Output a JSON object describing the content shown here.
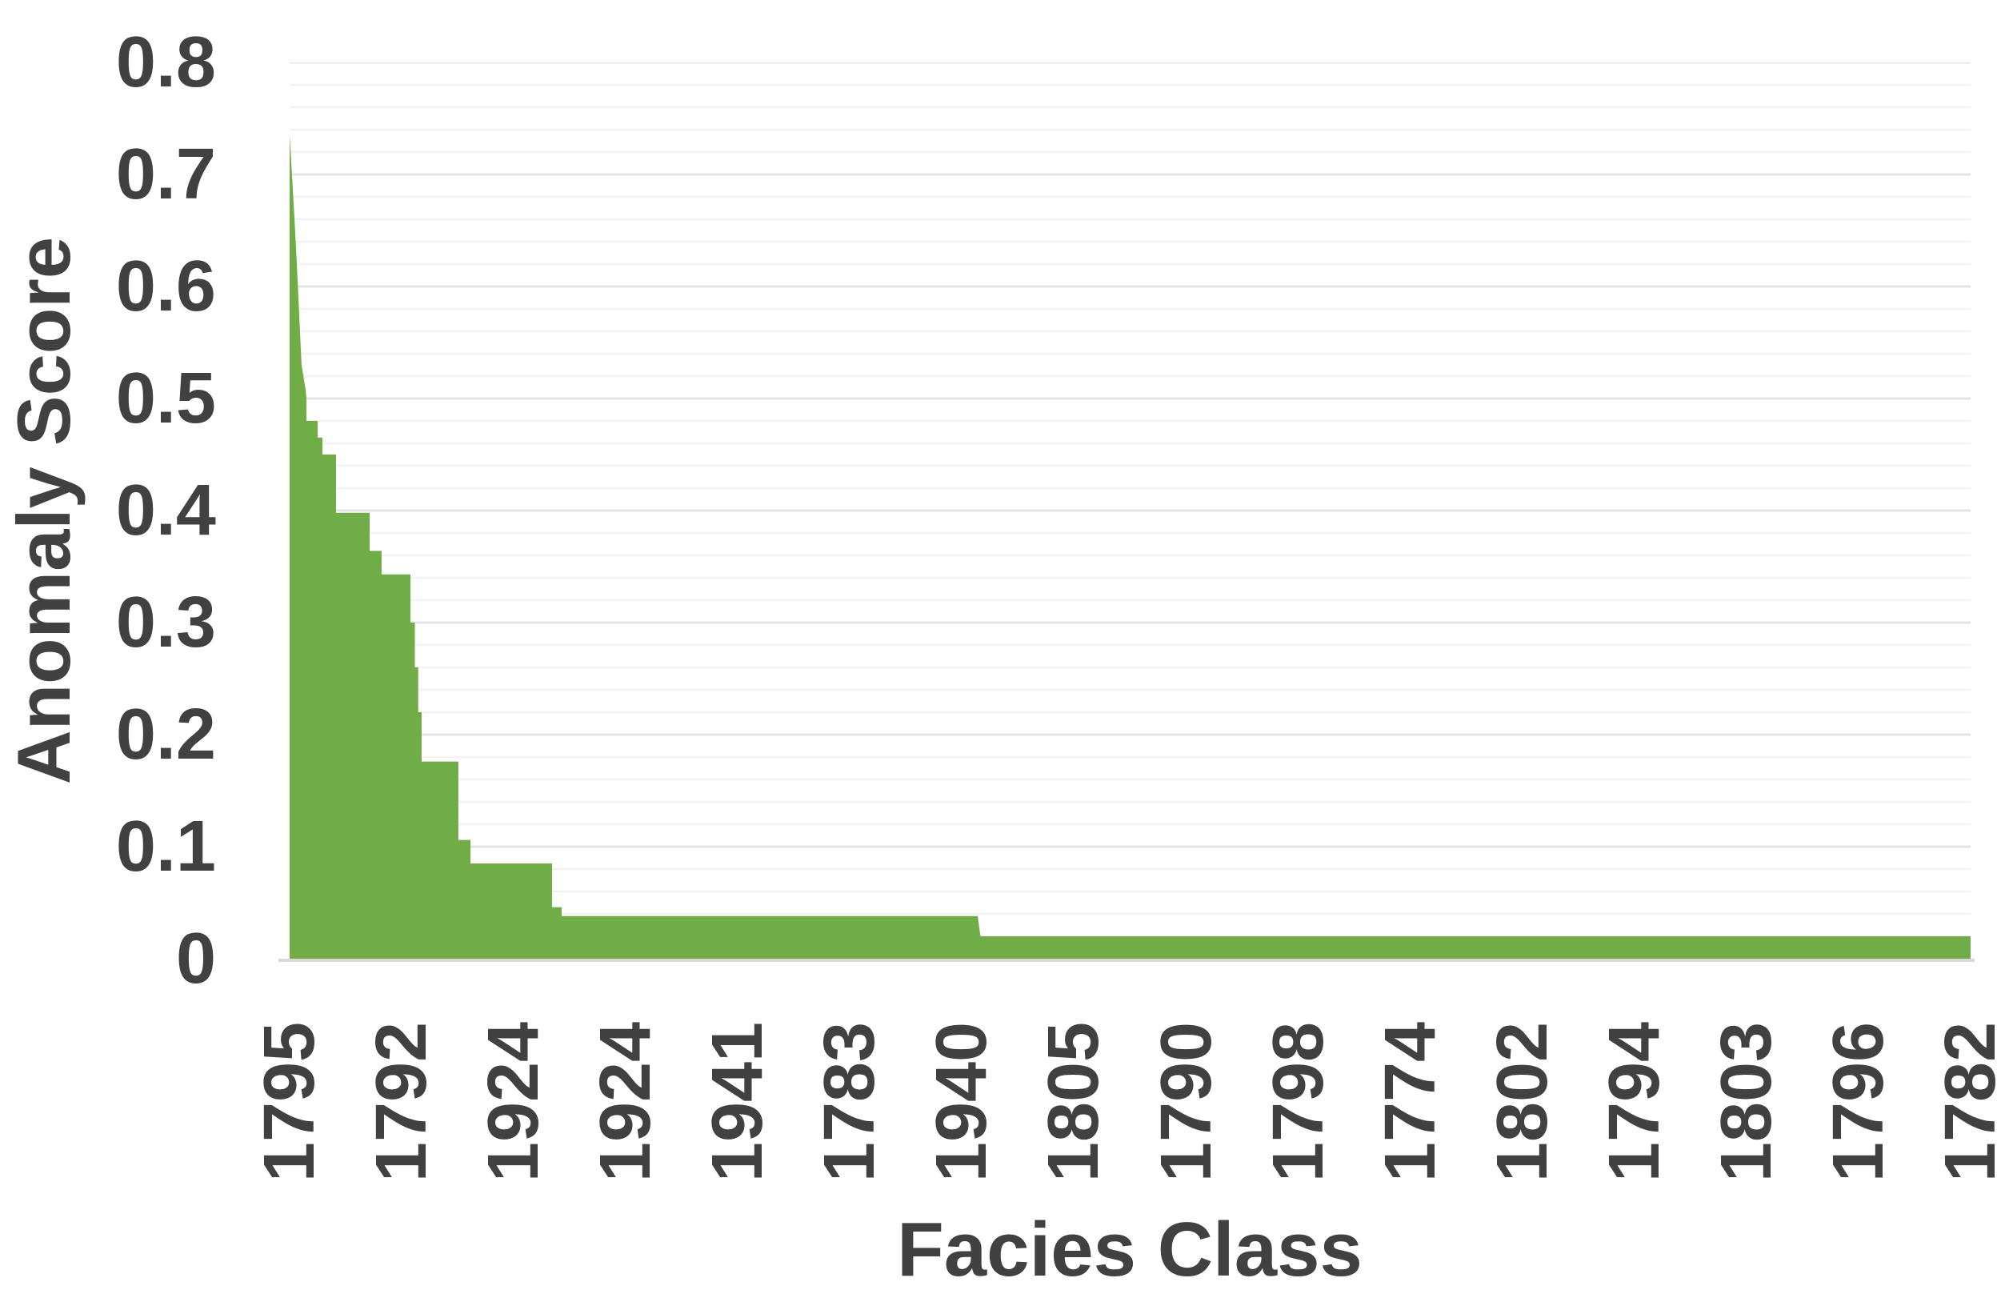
{
  "figure": {
    "background": "#FFFFFF",
    "text_color": "#414141"
  },
  "chart_data": {
    "type": "area",
    "title": "",
    "xlabel": "Facies Class",
    "ylabel": "Anomaly Score",
    "ylim": [
      0,
      0.8
    ],
    "y_tick_labels": [
      "0.8",
      "0.7",
      "0.6",
      "0.5",
      "0.4",
      "0.3",
      "0.2",
      "0.1",
      "0"
    ],
    "y_tick_values": [
      0.8,
      0.7,
      0.6,
      0.5,
      0.4,
      0.3,
      0.2,
      0.1,
      0
    ],
    "categories": [
      "1795",
      "1792",
      "1924",
      "1924",
      "1941",
      "1783",
      "1940",
      "1805",
      "1790",
      "1798",
      "1774",
      "1802",
      "1794",
      "1803",
      "1796",
      "1782"
    ],
    "values_at_ticks": [
      0.735,
      0.343,
      0.085,
      0.038,
      0.038,
      0.038,
      0.038,
      0.02,
      0.02,
      0.02,
      0.02,
      0.02,
      0.02,
      0.02,
      0.02,
      0.02
    ],
    "outline_steps": [
      [
        0.0,
        0.735
      ],
      [
        0.0014,
        0.7
      ],
      [
        0.0029,
        0.66
      ],
      [
        0.0043,
        0.62
      ],
      [
        0.0057,
        0.575
      ],
      [
        0.0071,
        0.53
      ],
      [
        0.0095,
        0.508
      ],
      [
        0.01,
        0.5
      ],
      [
        0.01,
        0.48
      ],
      [
        0.0167,
        0.48
      ],
      [
        0.0167,
        0.465
      ],
      [
        0.0195,
        0.465
      ],
      [
        0.0195,
        0.45
      ],
      [
        0.0276,
        0.45
      ],
      [
        0.0276,
        0.398
      ],
      [
        0.0476,
        0.398
      ],
      [
        0.0476,
        0.364
      ],
      [
        0.0547,
        0.364
      ],
      [
        0.0547,
        0.343
      ],
      [
        0.0719,
        0.343
      ],
      [
        0.0719,
        0.3
      ],
      [
        0.0745,
        0.3
      ],
      [
        0.0745,
        0.26
      ],
      [
        0.0765,
        0.26
      ],
      [
        0.0765,
        0.22
      ],
      [
        0.0785,
        0.22
      ],
      [
        0.0785,
        0.176
      ],
      [
        0.1004,
        0.176
      ],
      [
        0.1004,
        0.106
      ],
      [
        0.1076,
        0.106
      ],
      [
        0.1076,
        0.085
      ],
      [
        0.1561,
        0.085
      ],
      [
        0.1561,
        0.046
      ],
      [
        0.1618,
        0.046
      ],
      [
        0.1618,
        0.038
      ],
      [
        0.4093,
        0.038
      ],
      [
        0.411,
        0.02
      ],
      [
        1.0,
        0.02
      ]
    ],
    "area_color": "#70AD47",
    "grid": {
      "minor_step": 0.02,
      "major_step": 0.1,
      "minor_color": "#F2F2F2",
      "major_color": "#E5E5E5",
      "axis_line_color": "#D9D9D9"
    },
    "legend_position": "none"
  }
}
